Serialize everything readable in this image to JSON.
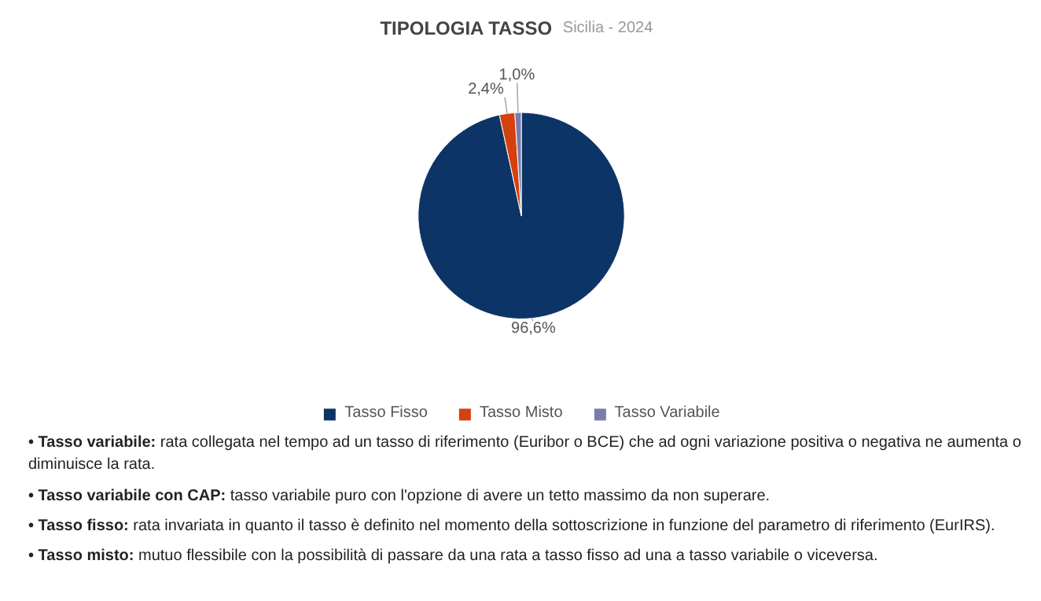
{
  "chart_data": {
    "type": "pie",
    "title": "TIPOLOGIA TASSO",
    "subtitle": "Sicilia - 2024",
    "categories": [
      "Tasso Fisso",
      "Tasso Misto",
      "Tasso Variabile"
    ],
    "values": [
      96.6,
      2.4,
      1.0
    ],
    "colors": [
      "#0d3466",
      "#d4400e",
      "#7b7bb0"
    ],
    "value_labels": [
      "96,6%",
      "2,4%",
      "1,0%"
    ],
    "legend": "bottom",
    "annotations": [
      "• Tasso variabile: rata collegata nel tempo ad un tasso di riferimento (Euribor o BCE) che ad ogni variazione positiva o negativa ne aumenta o diminuisce la rata.",
      "• Tasso variabile con CAP: tasso variabile puro con l'opzione di avere un tetto massimo da non superare.",
      "• Tasso fisso: rata invariata in quanto il tasso è definito nel momento della sottoscrizione in funzione del parametro di riferimento (EurIRS).",
      "• Tasso misto: mutuo flessibile con la possibilità di passare da una rata a tasso fisso ad una a tasso variabile o viceversa."
    ]
  }
}
